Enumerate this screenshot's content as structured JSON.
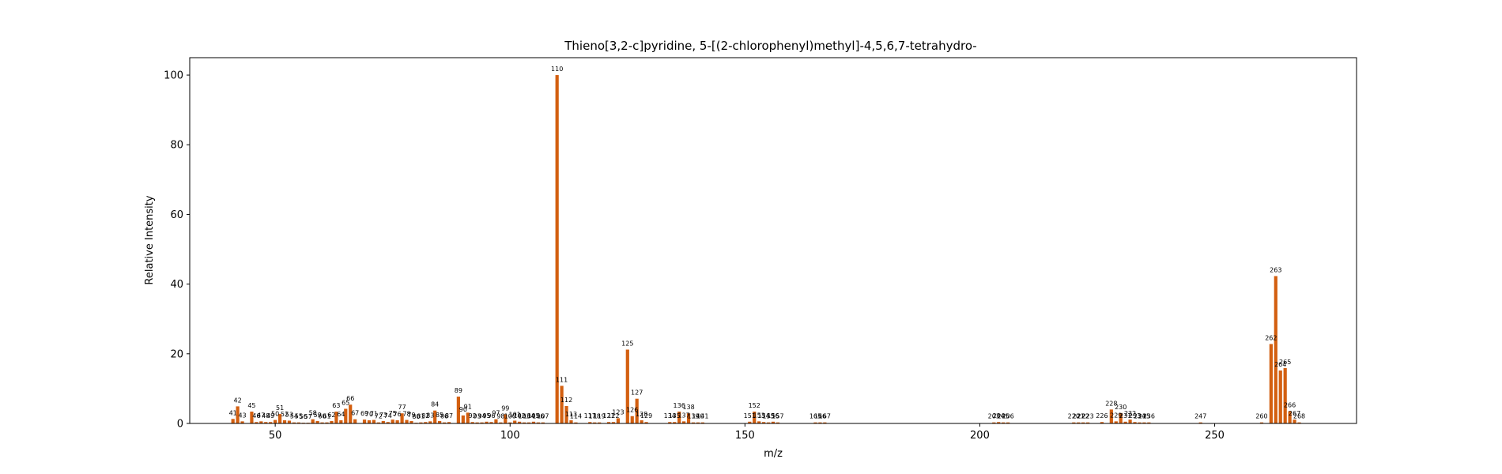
{
  "chart_data": {
    "type": "bar",
    "title": "Thieno[3,2-c]pyridine, 5-[(2-chlorophenyl)methyl]-4,5,6,7-tetrahydro-",
    "xlabel": "m/z",
    "ylabel": "Relative Intensity",
    "xlim": [
      31.8,
      280.2
    ],
    "ylim": [
      0,
      105
    ],
    "xticks": [
      50,
      100,
      150,
      200,
      250
    ],
    "yticks": [
      0,
      20,
      40,
      60,
      80,
      100
    ],
    "grid": false,
    "bar_color": "#d35f10",
    "peaks": [
      {
        "mz": 41,
        "intensity": 1.3
      },
      {
        "mz": 42,
        "intensity": 4.9
      },
      {
        "mz": 43,
        "intensity": 0.6
      },
      {
        "mz": 45,
        "intensity": 3.4
      },
      {
        "mz": 46,
        "intensity": 0.4
      },
      {
        "mz": 47,
        "intensity": 0.6
      },
      {
        "mz": 48,
        "intensity": 0.4
      },
      {
        "mz": 49,
        "intensity": 0.4
      },
      {
        "mz": 50,
        "intensity": 1.0
      },
      {
        "mz": 51,
        "intensity": 2.7
      },
      {
        "mz": 52,
        "intensity": 0.9
      },
      {
        "mz": 53,
        "intensity": 0.8
      },
      {
        "mz": 54,
        "intensity": 0.3
      },
      {
        "mz": 55,
        "intensity": 0.3
      },
      {
        "mz": 56,
        "intensity": 0.2
      },
      {
        "mz": 57,
        "intensity": 0.2
      },
      {
        "mz": 58,
        "intensity": 1.2
      },
      {
        "mz": 59,
        "intensity": 0.7
      },
      {
        "mz": 60,
        "intensity": 0.3
      },
      {
        "mz": 61,
        "intensity": 0.3
      },
      {
        "mz": 62,
        "intensity": 0.7
      },
      {
        "mz": 63,
        "intensity": 3.4
      },
      {
        "mz": 64,
        "intensity": 0.9
      },
      {
        "mz": 65,
        "intensity": 4.2
      },
      {
        "mz": 66,
        "intensity": 5.4
      },
      {
        "mz": 67,
        "intensity": 1.2
      },
      {
        "mz": 69,
        "intensity": 1.1
      },
      {
        "mz": 70,
        "intensity": 0.9
      },
      {
        "mz": 71,
        "intensity": 1.0
      },
      {
        "mz": 72,
        "intensity": 0.3
      },
      {
        "mz": 73,
        "intensity": 0.7
      },
      {
        "mz": 74,
        "intensity": 0.4
      },
      {
        "mz": 75,
        "intensity": 1.1
      },
      {
        "mz": 76,
        "intensity": 0.9
      },
      {
        "mz": 77,
        "intensity": 2.9
      },
      {
        "mz": 78,
        "intensity": 1.0
      },
      {
        "mz": 79,
        "intensity": 0.7
      },
      {
        "mz": 80,
        "intensity": 0.2
      },
      {
        "mz": 81,
        "intensity": 0.3
      },
      {
        "mz": 82,
        "intensity": 0.4
      },
      {
        "mz": 83,
        "intensity": 0.6
      },
      {
        "mz": 84,
        "intensity": 3.7
      },
      {
        "mz": 85,
        "intensity": 0.7
      },
      {
        "mz": 86,
        "intensity": 0.3
      },
      {
        "mz": 87,
        "intensity": 0.4
      },
      {
        "mz": 89,
        "intensity": 7.7
      },
      {
        "mz": 90,
        "intensity": 2.3
      },
      {
        "mz": 91,
        "intensity": 3.1
      },
      {
        "mz": 92,
        "intensity": 0.4
      },
      {
        "mz": 93,
        "intensity": 0.3
      },
      {
        "mz": 94,
        "intensity": 0.3
      },
      {
        "mz": 95,
        "intensity": 0.5
      },
      {
        "mz": 96,
        "intensity": 0.4
      },
      {
        "mz": 97,
        "intensity": 1.2
      },
      {
        "mz": 98,
        "intensity": 0.3
      },
      {
        "mz": 99,
        "intensity": 2.6
      },
      {
        "mz": 100,
        "intensity": 0.3
      },
      {
        "mz": 101,
        "intensity": 0.8
      },
      {
        "mz": 102,
        "intensity": 0.5
      },
      {
        "mz": 103,
        "intensity": 0.3
      },
      {
        "mz": 104,
        "intensity": 0.3
      },
      {
        "mz": 105,
        "intensity": 0.5
      },
      {
        "mz": 106,
        "intensity": 0.3
      },
      {
        "mz": 107,
        "intensity": 0.3
      },
      {
        "mz": 110,
        "intensity": 100
      },
      {
        "mz": 111,
        "intensity": 10.8
      },
      {
        "mz": 112,
        "intensity": 5.0
      },
      {
        "mz": 113,
        "intensity": 0.9
      },
      {
        "mz": 114,
        "intensity": 0.3
      },
      {
        "mz": 117,
        "intensity": 0.4
      },
      {
        "mz": 118,
        "intensity": 0.3
      },
      {
        "mz": 119,
        "intensity": 0.3
      },
      {
        "mz": 121,
        "intensity": 0.4
      },
      {
        "mz": 122,
        "intensity": 0.4
      },
      {
        "mz": 123,
        "intensity": 1.5
      },
      {
        "mz": 125,
        "intensity": 21.2
      },
      {
        "mz": 126,
        "intensity": 2.1
      },
      {
        "mz": 127,
        "intensity": 7.1
      },
      {
        "mz": 128,
        "intensity": 0.9
      },
      {
        "mz": 129,
        "intensity": 0.4
      },
      {
        "mz": 134,
        "intensity": 0.4
      },
      {
        "mz": 135,
        "intensity": 0.4
      },
      {
        "mz": 136,
        "intensity": 3.4
      },
      {
        "mz": 137,
        "intensity": 0.6
      },
      {
        "mz": 138,
        "intensity": 2.9
      },
      {
        "mz": 139,
        "intensity": 0.3
      },
      {
        "mz": 140,
        "intensity": 0.3
      },
      {
        "mz": 141,
        "intensity": 0.3
      },
      {
        "mz": 151,
        "intensity": 0.5
      },
      {
        "mz": 152,
        "intensity": 3.4
      },
      {
        "mz": 153,
        "intensity": 0.6
      },
      {
        "mz": 154,
        "intensity": 0.4
      },
      {
        "mz": 155,
        "intensity": 0.3
      },
      {
        "mz": 156,
        "intensity": 0.5
      },
      {
        "mz": 157,
        "intensity": 0.3
      },
      {
        "mz": 165,
        "intensity": 0.3
      },
      {
        "mz": 166,
        "intensity": 0.3
      },
      {
        "mz": 167,
        "intensity": 0.3
      },
      {
        "mz": 203,
        "intensity": 0.3
      },
      {
        "mz": 204,
        "intensity": 0.4
      },
      {
        "mz": 205,
        "intensity": 0.3
      },
      {
        "mz": 206,
        "intensity": 0.3
      },
      {
        "mz": 220,
        "intensity": 0.3
      },
      {
        "mz": 221,
        "intensity": 0.3
      },
      {
        "mz": 222,
        "intensity": 0.3
      },
      {
        "mz": 223,
        "intensity": 0.3
      },
      {
        "mz": 226,
        "intensity": 0.4
      },
      {
        "mz": 228,
        "intensity": 4.0
      },
      {
        "mz": 229,
        "intensity": 0.6
      },
      {
        "mz": 230,
        "intensity": 3.0
      },
      {
        "mz": 231,
        "intensity": 0.5
      },
      {
        "mz": 232,
        "intensity": 1.1
      },
      {
        "mz": 233,
        "intensity": 0.4
      },
      {
        "mz": 234,
        "intensity": 0.3
      },
      {
        "mz": 235,
        "intensity": 0.3
      },
      {
        "mz": 236,
        "intensity": 0.3
      },
      {
        "mz": 247,
        "intensity": 0.3
      },
      {
        "mz": 260,
        "intensity": 0.3
      },
      {
        "mz": 262,
        "intensity": 22.8
      },
      {
        "mz": 263,
        "intensity": 42.3
      },
      {
        "mz": 264,
        "intensity": 15.2
      },
      {
        "mz": 265,
        "intensity": 15.9
      },
      {
        "mz": 266,
        "intensity": 3.5
      },
      {
        "mz": 267,
        "intensity": 1.1
      },
      {
        "mz": 268,
        "intensity": 0.3
      }
    ]
  }
}
